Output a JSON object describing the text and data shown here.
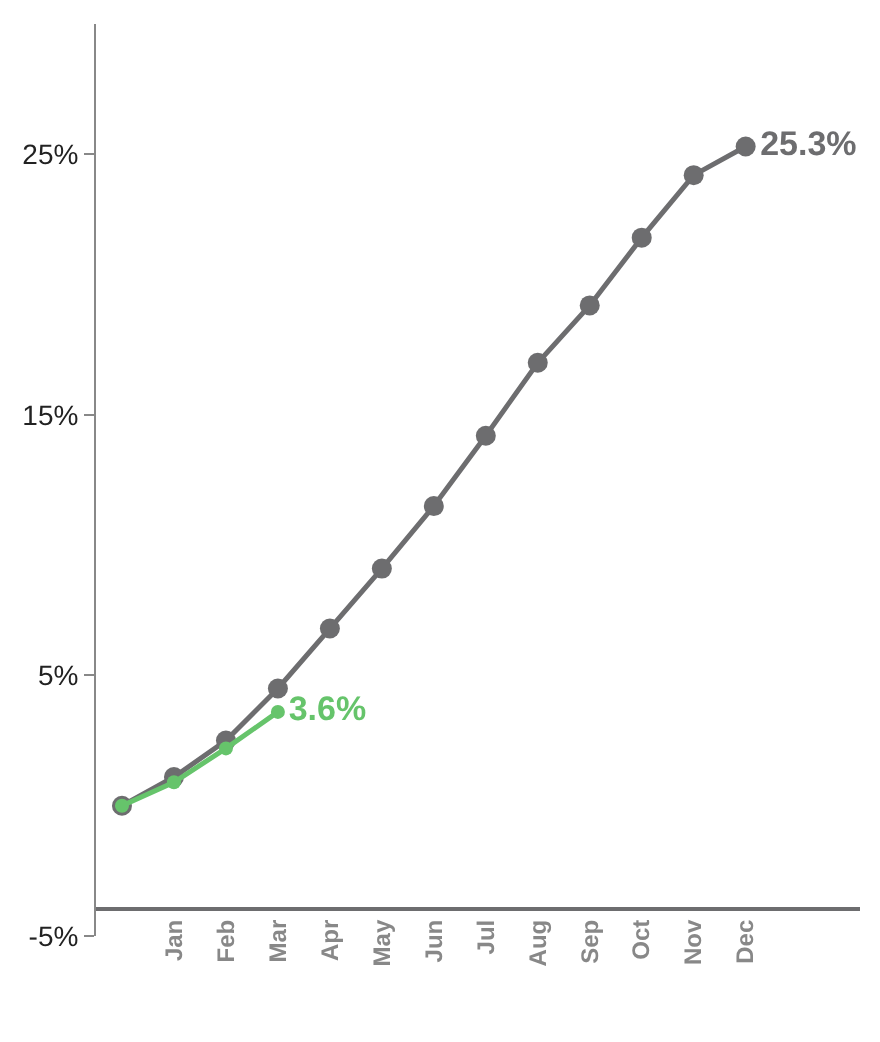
{
  "chart_data": {
    "type": "line",
    "categories": [
      null,
      "Jan",
      "Feb",
      "Mar",
      "Apr",
      "May",
      "Jun",
      "Jul",
      "Aug",
      "Sep",
      "Oct",
      "Nov",
      "Dec"
    ],
    "series": [
      {
        "color": "#6d6d6f",
        "values": [
          0,
          1.1,
          2.5,
          4.5,
          6.8,
          9.1,
          11.5,
          14.2,
          17.0,
          19.2,
          21.8,
          24.2,
          25.3
        ],
        "value_labels": [
          null,
          null,
          null,
          null,
          null,
          null,
          null,
          null,
          null,
          null,
          null,
          null,
          "25.3%"
        ]
      },
      {
        "color": "#66c46b",
        "values": [
          0,
          0.9,
          2.2,
          3.6,
          null,
          null,
          null,
          null,
          null,
          null,
          null,
          null,
          null
        ],
        "value_labels": [
          null,
          null,
          null,
          "3.6%",
          null,
          null,
          null,
          null,
          null,
          null,
          null,
          null,
          null
        ]
      }
    ],
    "ylim": [
      -5,
      30
    ],
    "yticks": [
      {
        "value": -5,
        "label": "-5%"
      },
      {
        "value": 5,
        "label": "5%"
      },
      {
        "value": 15,
        "label": "15%"
      },
      {
        "value": 25,
        "label": "25%"
      }
    ],
    "legend": false,
    "marker": "circle",
    "line_style": "solid"
  }
}
